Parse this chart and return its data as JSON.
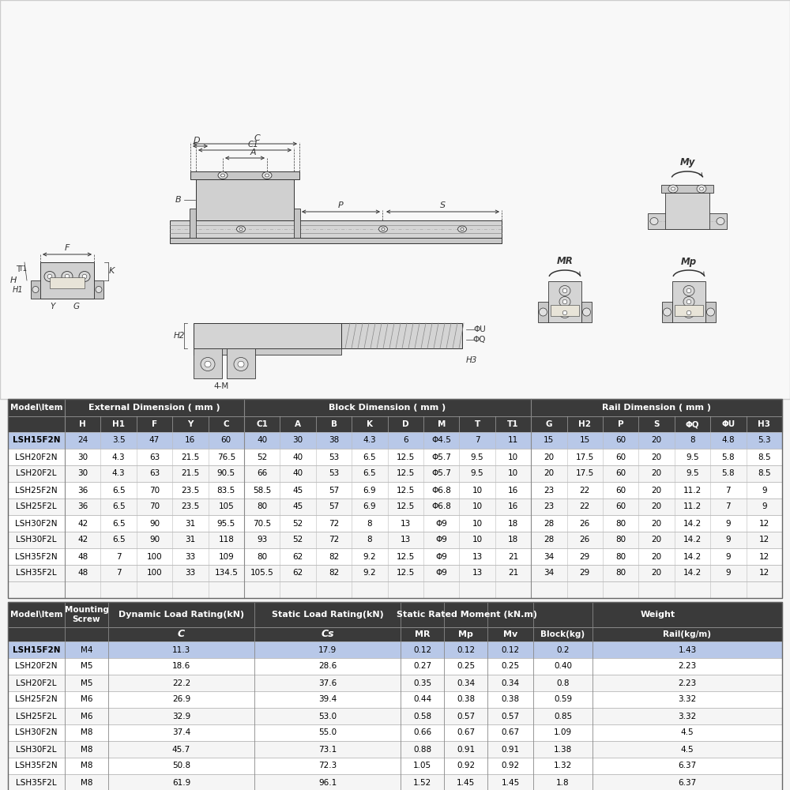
{
  "bg_color": "#f5f5f5",
  "table1_header_bg": "#3a3a3a",
  "table1_highlight_bg": "#b8c8e8",
  "table1_row_bg": "#ffffff",
  "table1_alt_bg": "#f0f0f0",
  "table2_header_bg": "#3a3a3a",
  "table2_highlight_bg": "#b8c8e8",
  "table2_row_bg": "#ffffff",
  "table1_col0_header": "Model\\Item",
  "table1_group1_header": "External Dimension ( mm )",
  "table1_group2_header": "Block Dimension ( mm )",
  "table1_group3_header": "Rail Dimension ( mm )",
  "table1_subheaders": [
    "H",
    "H1",
    "F",
    "Y",
    "C",
    "C1",
    "A",
    "B",
    "K",
    "D",
    "M",
    "T",
    "T1",
    "G",
    "H2",
    "P",
    "S",
    "ΦQ",
    "ΦU",
    "H3"
  ],
  "table1_rows": [
    [
      "LSH15F2N",
      "24",
      "3.5",
      "47",
      "16",
      "60",
      "40",
      "30",
      "38",
      "4.3",
      "6",
      "Φ4.5",
      "7",
      "11",
      "15",
      "15",
      "60",
      "20",
      "8",
      "4.8",
      "5.3"
    ],
    [
      "LSH20F2N",
      "30",
      "4.3",
      "63",
      "21.5",
      "76.5",
      "52",
      "40",
      "53",
      "6.5",
      "12.5",
      "Φ5.7",
      "9.5",
      "10",
      "20",
      "17.5",
      "60",
      "20",
      "9.5",
      "5.8",
      "8.5"
    ],
    [
      "LSH20F2L",
      "30",
      "4.3",
      "63",
      "21.5",
      "90.5",
      "66",
      "40",
      "53",
      "6.5",
      "12.5",
      "Φ5.7",
      "9.5",
      "10",
      "20",
      "17.5",
      "60",
      "20",
      "9.5",
      "5.8",
      "8.5"
    ],
    [
      "LSH25F2N",
      "36",
      "6.5",
      "70",
      "23.5",
      "83.5",
      "58.5",
      "45",
      "57",
      "6.9",
      "12.5",
      "Φ6.8",
      "10",
      "16",
      "23",
      "22",
      "60",
      "20",
      "11.2",
      "7",
      "9"
    ],
    [
      "LSH25F2L",
      "36",
      "6.5",
      "70",
      "23.5",
      "105",
      "80",
      "45",
      "57",
      "6.9",
      "12.5",
      "Φ6.8",
      "10",
      "16",
      "23",
      "22",
      "60",
      "20",
      "11.2",
      "7",
      "9"
    ],
    [
      "LSH30F2N",
      "42",
      "6.5",
      "90",
      "31",
      "95.5",
      "70.5",
      "52",
      "72",
      "8",
      "13",
      "Φ9",
      "10",
      "18",
      "28",
      "26",
      "80",
      "20",
      "14.2",
      "9",
      "12"
    ],
    [
      "LSH30F2L",
      "42",
      "6.5",
      "90",
      "31",
      "118",
      "93",
      "52",
      "72",
      "8",
      "13",
      "Φ9",
      "10",
      "18",
      "28",
      "26",
      "80",
      "20",
      "14.2",
      "9",
      "12"
    ],
    [
      "LSH35F2N",
      "48",
      "7",
      "100",
      "33",
      "109",
      "80",
      "62",
      "82",
      "9.2",
      "12.5",
      "Φ9",
      "13",
      "21",
      "34",
      "29",
      "80",
      "20",
      "14.2",
      "9",
      "12"
    ],
    [
      "LSH35F2L",
      "48",
      "7",
      "100",
      "33",
      "134.5",
      "105.5",
      "62",
      "82",
      "9.2",
      "12.5",
      "Φ9",
      "13",
      "21",
      "34",
      "29",
      "80",
      "20",
      "14.2",
      "9",
      "12"
    ]
  ],
  "table2_col0_header": "Model\\Item",
  "table2_group2_header": "Dynamic Load Rating(kN)",
  "table2_group3_header": "Static Load Rating(kN)",
  "table2_group4_header": "Static Rated Moment (kN.m)",
  "table2_group5_header": "Weight",
  "table2_rows": [
    [
      "LSH15F2N",
      "M4",
      "11.3",
      "17.9",
      "0.12",
      "0.12",
      "0.12",
      "0.2",
      "1.43"
    ],
    [
      "LSH20F2N",
      "M5",
      "18.6",
      "28.6",
      "0.27",
      "0.25",
      "0.25",
      "0.40",
      "2.23"
    ],
    [
      "LSH20F2L",
      "M5",
      "22.2",
      "37.6",
      "0.35",
      "0.34",
      "0.34",
      "0.8",
      "2.23"
    ],
    [
      "LSH25F2N",
      "M6",
      "26.9",
      "39.4",
      "0.44",
      "0.38",
      "0.38",
      "0.59",
      "3.32"
    ],
    [
      "LSH25F2L",
      "M6",
      "32.9",
      "53.0",
      "0.58",
      "0.57",
      "0.57",
      "0.85",
      "3.32"
    ],
    [
      "LSH30F2N",
      "M8",
      "37.4",
      "55.0",
      "0.66",
      "0.67",
      "0.67",
      "1.09",
      "4.5"
    ],
    [
      "LSH30F2L",
      "M8",
      "45.7",
      "73.1",
      "0.88",
      "0.91",
      "0.91",
      "1.38",
      "4.5"
    ],
    [
      "LSH35F2N",
      "M8",
      "50.8",
      "72.3",
      "1.05",
      "0.92",
      "0.92",
      "1.32",
      "6.37"
    ],
    [
      "LSH35F2L",
      "M8",
      "61.9",
      "96.1",
      "1.52",
      "1.45",
      "1.45",
      "1.8",
      "6.37"
    ]
  ],
  "drawing_color": "#d0d0d0",
  "dark_color": "#333333",
  "line_color": "#555555",
  "hatch_color": "#888888"
}
